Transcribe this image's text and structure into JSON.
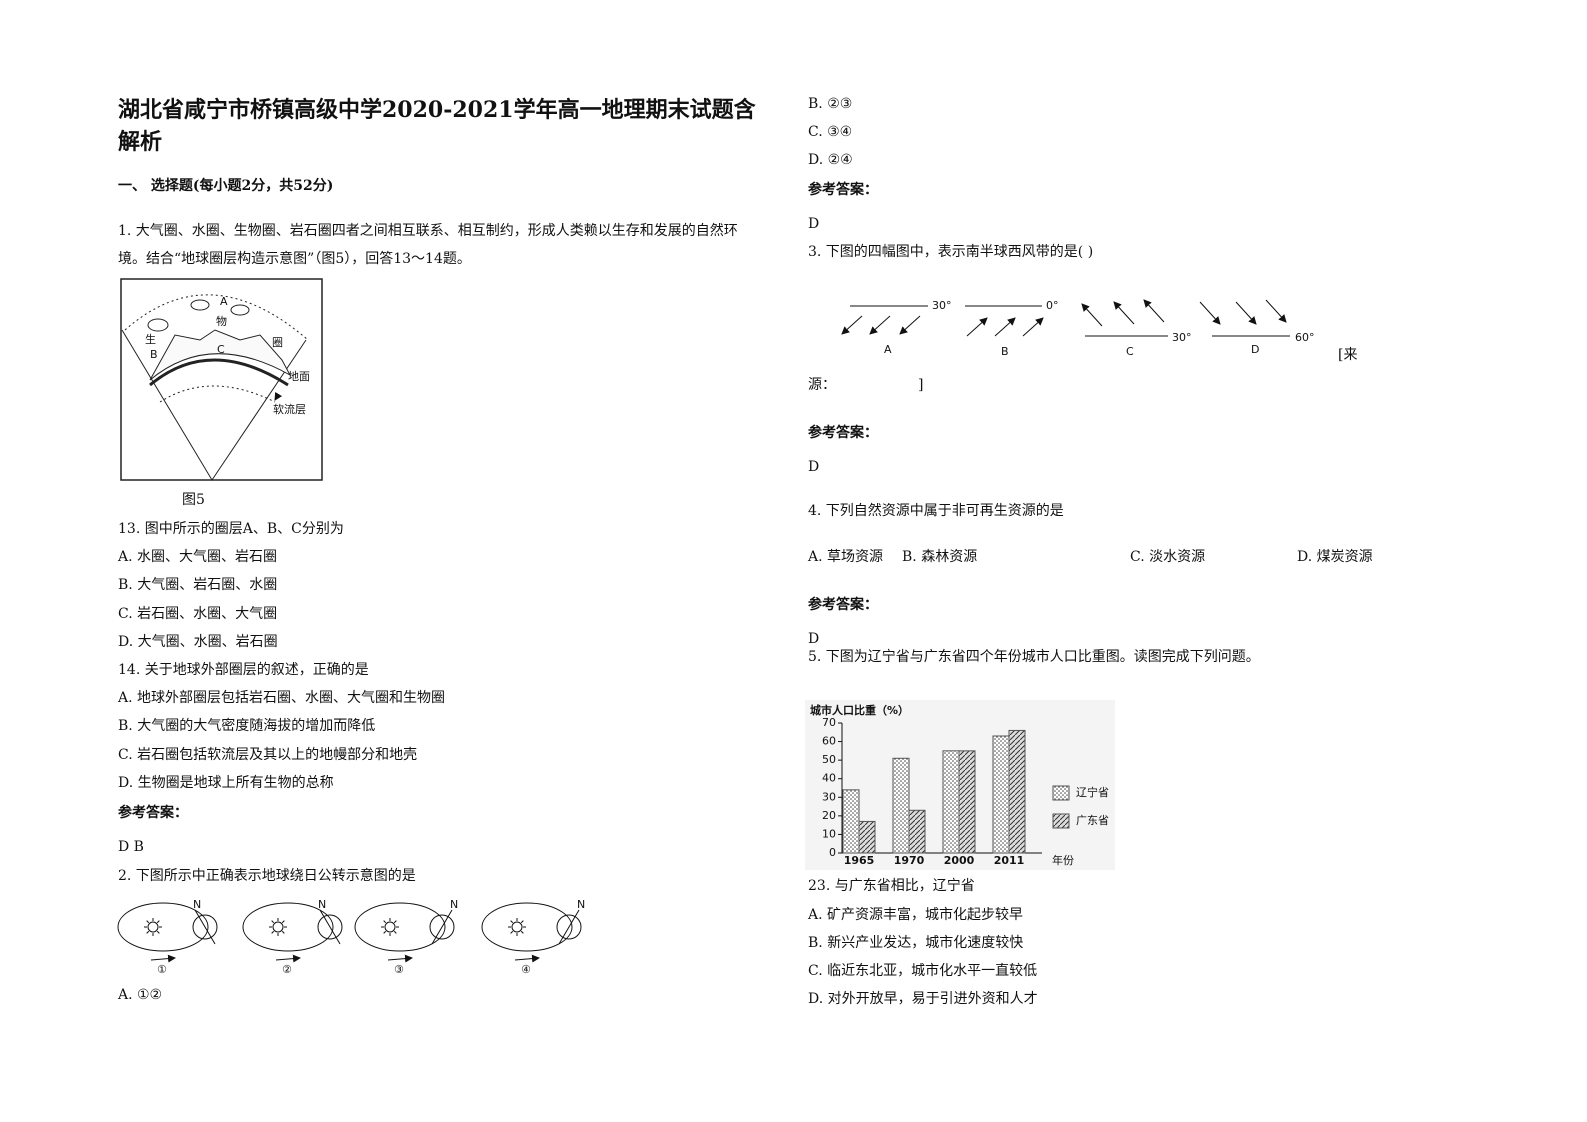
{
  "title": "湖北省咸宁市桥镇高级中学2020-2021学年高一地理期末试题含解析",
  "section": "一、 选择题(每小题2分，共52分)",
  "q1": {
    "text": "1. 大气圈、水圈、生物圈、岩石圈四者之间相互联系、相互制约，形成人类赖以生存和发展的自然环境。结合“地球圈层构造示意图”（图5），回答13～14题。",
    "figure": {
      "a": "A",
      "wu": "物",
      "sheng": "生",
      "b": "B",
      "c": "C",
      "quan": "圈",
      "ground": "地面",
      "asthenosphere": "软流层"
    },
    "caption": "图5"
  },
  "q13": {
    "text": "13. 图中所示的圈层A、B、C分别为",
    "options": [
      "A. 水圈、大气圈、岩石圈",
      "B. 大气圈、岩石圈、水圈",
      "C. 岩石圈、水圈、大气圈",
      "D. 大气圈、水圈、岩石圈"
    ]
  },
  "q14": {
    "text": "14. 关于地球外部圈层的叙述，正确的是",
    "options": [
      "A.  地球外部圈层包括岩石圈、水圈、大气圈和生物圈",
      "B.  大气圈的大气密度随海拔的增加而降低",
      "C.  岩石圈包括软流层及其以上的地幔部分和地壳",
      "D.  生物圈是地球上所有生物的总称"
    ]
  },
  "answer_label": "参考答案：",
  "answer1": "D B",
  "q2": {
    "text": "2. 下图所示中正确表示地球绕日公转示意图的是",
    "figure": {
      "labels": [
        "①",
        "②",
        "③",
        "④"
      ],
      "north": "N"
    },
    "options": [
      "A.  ①②",
      "B.  ②③",
      "C.  ③④",
      "D.  ②④"
    ]
  },
  "answer2": "D",
  "q3": {
    "text": "3. 下图的四幅图中，表示南半球西风带的是(    )",
    "figure": {
      "latitudes": [
        "30°",
        "0°",
        "30°",
        "60°"
      ],
      "labels": [
        "A",
        "B",
        "C",
        "D"
      ]
    },
    "source": [
      "[来",
      "源：",
      "]"
    ]
  },
  "answer3": "D",
  "q4": {
    "text": "4. 下列自然资源中属于非可再生资源的是",
    "options": [
      "A. 草场资源",
      "B. 森林资源",
      "C. 淡水资源",
      "D. 煤炭资源"
    ]
  },
  "answer4": "D",
  "q5": {
    "text": "5. 下图为辽宁省与广东省四个年份城市人口比重图。读图完成下列问题。"
  },
  "chart_data": {
    "type": "bar",
    "y_label": "城市人口比重（%）",
    "x_label": "年份",
    "categories": [
      "1965",
      "1970",
      "2000",
      "2011"
    ],
    "series": [
      {
        "name": "辽宁省",
        "color": "#555555",
        "values": [
          34,
          51,
          55,
          63
        ]
      },
      {
        "name": "广东省",
        "color": "#555555",
        "values": [
          17,
          23,
          55,
          66
        ]
      }
    ],
    "ylim": [
      0,
      70
    ],
    "yticks": [
      0,
      10,
      20,
      30,
      40,
      50,
      60,
      70
    ],
    "legend": "right"
  },
  "q23": {
    "text": "23.  与广东省相比，辽宁省",
    "options": [
      "A.  矿产资源丰富，城市化起步较早",
      "B.  新兴产业发达，城市化速度较快",
      "C.  临近东北亚，城市化水平一直较低",
      "D.  对外开放早，易于引进外资和人才"
    ]
  }
}
